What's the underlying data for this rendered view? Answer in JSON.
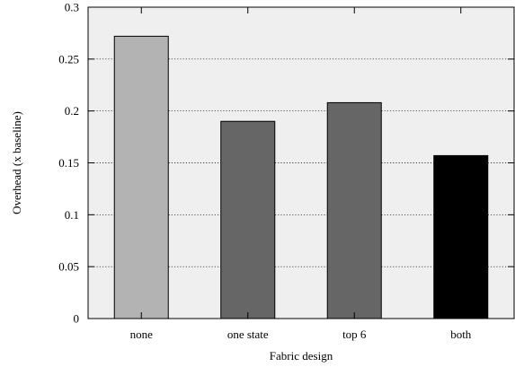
{
  "chart_data": {
    "type": "bar",
    "title": "",
    "xlabel": "Fabric design",
    "ylabel": "Overhead (x baseline)",
    "categories": [
      "none",
      "one state",
      "top 6",
      "both"
    ],
    "values": [
      0.272,
      0.19,
      0.208,
      0.157
    ],
    "bar_colors": [
      "#b3b3b3",
      "#666666",
      "#666666",
      "#000000"
    ],
    "ylim": [
      0,
      0.3
    ],
    "yticks": [
      0,
      0.05,
      0.1,
      0.15,
      0.2,
      0.25,
      0.3
    ],
    "ytick_labels": [
      "0",
      "0.05",
      "0.1",
      "0.15",
      "0.2",
      "0.25",
      "0.3"
    ],
    "grid": true,
    "plot_background": "#efefef"
  }
}
